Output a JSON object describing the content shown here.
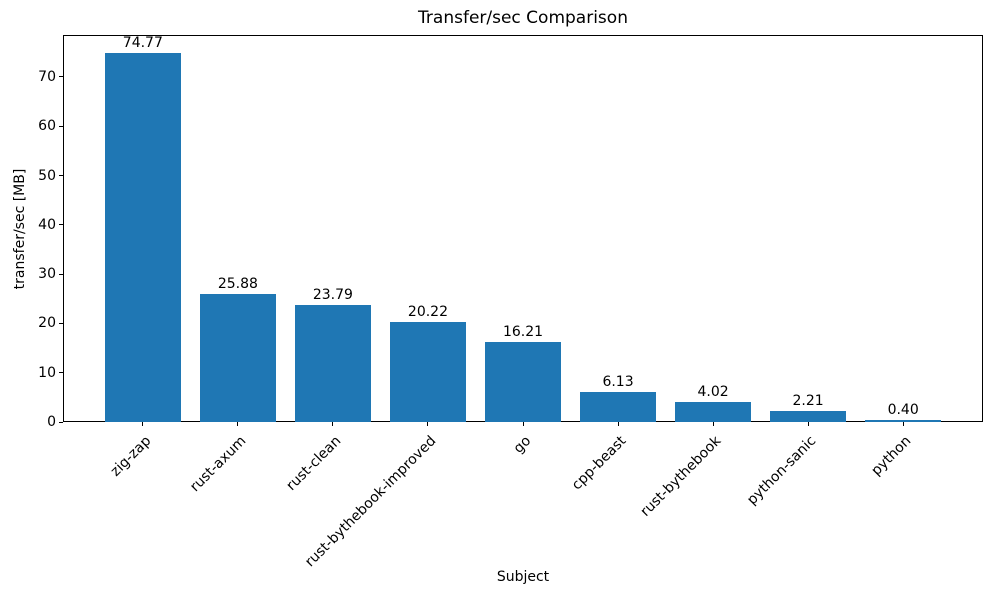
{
  "chart_data": {
    "type": "bar",
    "title": "Transfer/sec Comparison",
    "xlabel": "Subject",
    "ylabel": "transfer/sec [MB]",
    "categories": [
      "zig-zap",
      "rust-axum",
      "rust-clean",
      "rust-bythebook-improved",
      "go",
      "cpp-beast",
      "rust-bythebook",
      "python-sanic",
      "python"
    ],
    "values": [
      74.77,
      25.88,
      23.79,
      20.22,
      16.21,
      6.13,
      4.02,
      2.21,
      0.4
    ],
    "value_labels": [
      "74.77",
      "25.88",
      "23.79",
      "20.22",
      "16.21",
      "6.13",
      "4.02",
      "2.21",
      "0.40"
    ],
    "yticks": [
      0,
      10,
      20,
      30,
      40,
      50,
      60,
      70
    ],
    "ylim": [
      0,
      78.51
    ],
    "bar_color": "#1f77b4",
    "axis_color": "#000000",
    "text_color": "#000000",
    "grid": false,
    "legend": "none",
    "bar_label_position": "above",
    "xtick_rotation_deg": 45
  }
}
